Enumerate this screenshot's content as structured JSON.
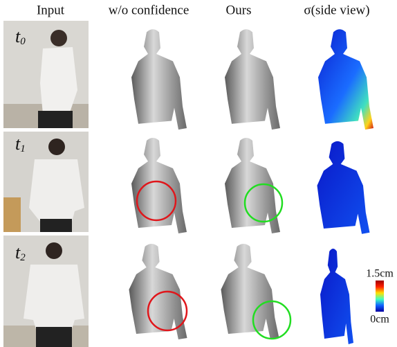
{
  "columns": [
    "Input",
    "w/o confidence",
    "Ours",
    "σ(side view)"
  ],
  "rows": [
    {
      "label": "t",
      "subscript": "0"
    },
    {
      "label": "t",
      "subscript": "1"
    },
    {
      "label": "t",
      "subscript": "2"
    }
  ],
  "colorbar": {
    "max_label": "1.5cm",
    "min_label": "0cm"
  }
}
